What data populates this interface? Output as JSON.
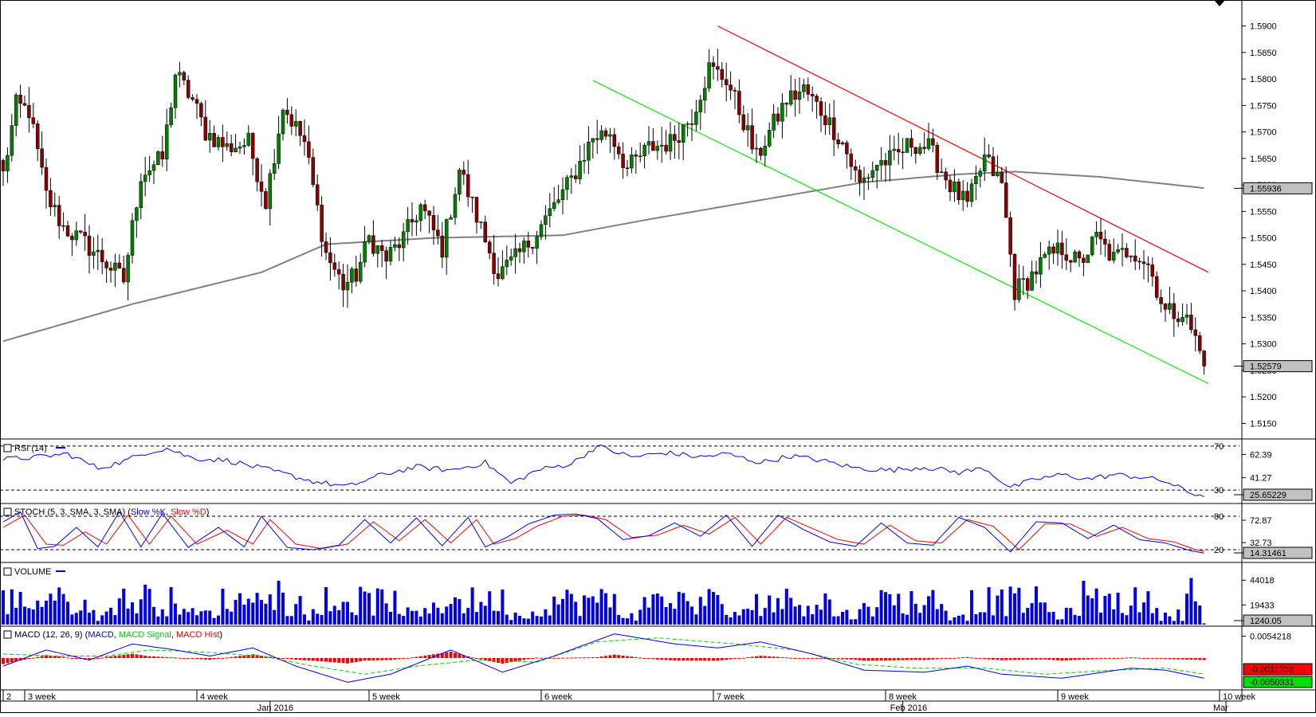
{
  "chart_data": {
    "type": "candlestick",
    "colors": {
      "up": "#008000",
      "down": "#8b0000",
      "sma": "#808080",
      "upper_channel": "#ff0000",
      "lower_channel": "#00ee00",
      "rsi": "#0000ff",
      "stoch_k": "#0000ff",
      "stoch_d": "#ff0000",
      "volume": "#0000ee",
      "macd": "#0000ff",
      "macd_signal": "#00cc00",
      "macd_hist": "#ff0000",
      "price_label_bg": "#c0c0c0"
    },
    "price": {
      "ylim": [
        1.5125,
        1.594
      ],
      "ticks": [
        "1.5900",
        "1.5850",
        "1.5800",
        "1.5750",
        "1.5700",
        "1.5650",
        "1.5600",
        "1.5550",
        "1.5500",
        "1.5450",
        "1.5400",
        "1.5350",
        "1.5300",
        "1.5250",
        "1.5200",
        "1.5150"
      ],
      "current_label": "1.52579",
      "current_value": 1.52579,
      "sma_label": "1.55936",
      "sma_value": 1.55936,
      "candles_count": 280,
      "anchors": [
        [
          0,
          1.562
        ],
        [
          3,
          1.575
        ],
        [
          6,
          1.574
        ],
        [
          10,
          1.558
        ],
        [
          14,
          1.552
        ],
        [
          19,
          1.549
        ],
        [
          23,
          1.546
        ],
        [
          28,
          1.542
        ],
        [
          32,
          1.562
        ],
        [
          37,
          1.565
        ],
        [
          40,
          1.581
        ],
        [
          44,
          1.576
        ],
        [
          47,
          1.57
        ],
        [
          52,
          1.567
        ],
        [
          57,
          1.568
        ],
        [
          61,
          1.557
        ],
        [
          65,
          1.575
        ],
        [
          70,
          1.568
        ],
        [
          75,
          1.547
        ],
        [
          79,
          1.541
        ],
        [
          82,
          1.543
        ],
        [
          85,
          1.55
        ],
        [
          89,
          1.546
        ],
        [
          93,
          1.55
        ],
        [
          97,
          1.556
        ],
        [
          102,
          1.548
        ],
        [
          106,
          1.563
        ],
        [
          110,
          1.554
        ],
        [
          115,
          1.543
        ],
        [
          119,
          1.546
        ],
        [
          123,
          1.55
        ],
        [
          128,
          1.556
        ],
        [
          132,
          1.561
        ],
        [
          137,
          1.569
        ],
        [
          141,
          1.57
        ],
        [
          145,
          1.563
        ],
        [
          150,
          1.567
        ],
        [
          155,
          1.568
        ],
        [
          160,
          1.573
        ],
        [
          164,
          1.582
        ],
        [
          168,
          1.58
        ],
        [
          172,
          1.572
        ],
        [
          175,
          1.565
        ],
        [
          178,
          1.57
        ],
        [
          182,
          1.576
        ],
        [
          186,
          1.578
        ],
        [
          190,
          1.574
        ],
        [
          195,
          1.568
        ],
        [
          199,
          1.56
        ],
        [
          203,
          1.564
        ],
        [
          207,
          1.565
        ],
        [
          211,
          1.568
        ],
        [
          215,
          1.567
        ],
        [
          220,
          1.56
        ],
        [
          224,
          1.556
        ],
        [
          228,
          1.565
        ],
        [
          232,
          1.56
        ],
        [
          235,
          1.54
        ],
        [
          238,
          1.542
        ],
        [
          242,
          1.546
        ],
        [
          246,
          1.548
        ],
        [
          250,
          1.545
        ],
        [
          254,
          1.55
        ],
        [
          258,
          1.546
        ],
        [
          262,
          1.548
        ],
        [
          266,
          1.545
        ],
        [
          270,
          1.536
        ],
        [
          274,
          1.536
        ],
        [
          277,
          1.531
        ],
        [
          279,
          1.5258
        ]
      ]
    },
    "sma": [
      [
        0,
        1.5305
      ],
      [
        30,
        1.5375
      ],
      [
        60,
        1.5435
      ],
      [
        75,
        1.5488
      ],
      [
        100,
        1.55
      ],
      [
        130,
        1.5505
      ],
      [
        150,
        1.5535
      ],
      [
        175,
        1.557
      ],
      [
        200,
        1.5605
      ],
      [
        222,
        1.562
      ],
      [
        235,
        1.5625
      ],
      [
        255,
        1.5615
      ],
      [
        279,
        1.5594
      ]
    ],
    "upper_channel": {
      "from": [
        166,
        1.59
      ],
      "to": [
        280,
        1.5435
      ]
    },
    "lower_channel": {
      "from": [
        137,
        1.5797
      ],
      "to": [
        280,
        1.5225
      ]
    },
    "rsi": {
      "title": "RSI (14)",
      "ylim": [
        20,
        75
      ],
      "levels": [
        "70",
        "30"
      ],
      "ticks": [
        "62.39",
        "41.27"
      ],
      "current_label": "25.65229",
      "anchors": [
        [
          0,
          58
        ],
        [
          8,
          60
        ],
        [
          15,
          63
        ],
        [
          22,
          50
        ],
        [
          28,
          56
        ],
        [
          33,
          64
        ],
        [
          38,
          68
        ],
        [
          44,
          59
        ],
        [
          52,
          57
        ],
        [
          62,
          48
        ],
        [
          72,
          38
        ],
        [
          80,
          33
        ],
        [
          88,
          44
        ],
        [
          96,
          51
        ],
        [
          104,
          48
        ],
        [
          112,
          55
        ],
        [
          118,
          36
        ],
        [
          124,
          48
        ],
        [
          132,
          54
        ],
        [
          138,
          70
        ],
        [
          146,
          60
        ],
        [
          154,
          64
        ],
        [
          162,
          60
        ],
        [
          168,
          63
        ],
        [
          176,
          55
        ],
        [
          183,
          61
        ],
        [
          190,
          57
        ],
        [
          198,
          50
        ],
        [
          206,
          48
        ],
        [
          214,
          51
        ],
        [
          222,
          46
        ],
        [
          228,
          50
        ],
        [
          234,
          32
        ],
        [
          240,
          40
        ],
        [
          246,
          44
        ],
        [
          252,
          40
        ],
        [
          258,
          44
        ],
        [
          264,
          42
        ],
        [
          270,
          38
        ],
        [
          276,
          27
        ],
        [
          279,
          25.6
        ]
      ]
    },
    "stoch": {
      "title": "STOCH (5, 3, SMA, 3, SMA)",
      "ylim": [
        0,
        100
      ],
      "levels": [
        "80",
        "20"
      ],
      "ticks": [
        "72.87",
        "32.73"
      ],
      "current_label": "14.31461",
      "k_anchors": [
        [
          0,
          70
        ],
        [
          4,
          88
        ],
        [
          8,
          22
        ],
        [
          12,
          26
        ],
        [
          17,
          60
        ],
        [
          22,
          25
        ],
        [
          27,
          88
        ],
        [
          32,
          25
        ],
        [
          37,
          85
        ],
        [
          43,
          24
        ],
        [
          50,
          60
        ],
        [
          56,
          25
        ],
        [
          60,
          80
        ],
        [
          66,
          24
        ],
        [
          72,
          20
        ],
        [
          78,
          28
        ],
        [
          84,
          74
        ],
        [
          90,
          32
        ],
        [
          96,
          77
        ],
        [
          102,
          27
        ],
        [
          108,
          78
        ],
        [
          112,
          25
        ],
        [
          117,
          42
        ],
        [
          122,
          66
        ],
        [
          128,
          82
        ],
        [
          133,
          84
        ],
        [
          138,
          76
        ],
        [
          144,
          38
        ],
        [
          150,
          45
        ],
        [
          156,
          68
        ],
        [
          162,
          44
        ],
        [
          168,
          82
        ],
        [
          174,
          26
        ],
        [
          180,
          82
        ],
        [
          186,
          56
        ],
        [
          192,
          34
        ],
        [
          198,
          26
        ],
        [
          204,
          68
        ],
        [
          210,
          32
        ],
        [
          216,
          28
        ],
        [
          222,
          78
        ],
        [
          228,
          60
        ],
        [
          234,
          16
        ],
        [
          240,
          70
        ],
        [
          246,
          68
        ],
        [
          252,
          40
        ],
        [
          258,
          64
        ],
        [
          264,
          38
        ],
        [
          270,
          32
        ],
        [
          276,
          18
        ],
        [
          279,
          14
        ]
      ],
      "d_anchors": [
        [
          0,
          60
        ],
        [
          5,
          82
        ],
        [
          10,
          30
        ],
        [
          14,
          28
        ],
        [
          19,
          52
        ],
        [
          24,
          30
        ],
        [
          29,
          82
        ],
        [
          34,
          30
        ],
        [
          39,
          80
        ],
        [
          45,
          30
        ],
        [
          52,
          55
        ],
        [
          58,
          30
        ],
        [
          62,
          74
        ],
        [
          68,
          30
        ],
        [
          74,
          22
        ],
        [
          80,
          30
        ],
        [
          86,
          70
        ],
        [
          92,
          36
        ],
        [
          98,
          74
        ],
        [
          104,
          32
        ],
        [
          110,
          74
        ],
        [
          114,
          30
        ],
        [
          119,
          40
        ],
        [
          124,
          62
        ],
        [
          130,
          80
        ],
        [
          135,
          82
        ],
        [
          140,
          74
        ],
        [
          146,
          42
        ],
        [
          152,
          46
        ],
        [
          158,
          64
        ],
        [
          164,
          48
        ],
        [
          170,
          78
        ],
        [
          176,
          30
        ],
        [
          182,
          78
        ],
        [
          188,
          58
        ],
        [
          194,
          38
        ],
        [
          200,
          30
        ],
        [
          206,
          64
        ],
        [
          212,
          36
        ],
        [
          218,
          32
        ],
        [
          224,
          74
        ],
        [
          230,
          62
        ],
        [
          236,
          20
        ],
        [
          242,
          66
        ],
        [
          248,
          66
        ],
        [
          254,
          44
        ],
        [
          260,
          60
        ],
        [
          266,
          40
        ],
        [
          272,
          34
        ],
        [
          277,
          20
        ],
        [
          279,
          17
        ]
      ]
    },
    "volume": {
      "title": "VOLUME",
      "ymax": 60000,
      "ticks": [
        "44018",
        "19433"
      ],
      "current_label": "1240.05",
      "current_value": 1240.05
    },
    "macd": {
      "title": "MACD (12, 26, 9)",
      "series_names": [
        "MACD",
        "MACD Signal",
        "MACD Hist"
      ],
      "ylim": [
        -0.0075,
        0.0075
      ],
      "ticks": [
        "0.0054218"
      ],
      "macd_label": "-0.0050331",
      "hist_label": "-0.0011703",
      "macd_anchors": [
        [
          0,
          -0.002
        ],
        [
          10,
          0.002
        ],
        [
          20,
          -0.0005
        ],
        [
          30,
          0.0035
        ],
        [
          40,
          0.002
        ],
        [
          48,
          0.0005
        ],
        [
          58,
          0.0025
        ],
        [
          68,
          -0.002
        ],
        [
          80,
          -0.006
        ],
        [
          90,
          -0.004
        ],
        [
          104,
          0.002
        ],
        [
          116,
          -0.0035
        ],
        [
          128,
          0.0005
        ],
        [
          142,
          0.006
        ],
        [
          156,
          0.0035
        ],
        [
          166,
          0.0025
        ],
        [
          176,
          0.004
        ],
        [
          188,
          0.001
        ],
        [
          200,
          -0.003
        ],
        [
          214,
          -0.0035
        ],
        [
          224,
          -0.002
        ],
        [
          232,
          -0.004
        ],
        [
          246,
          -0.005
        ],
        [
          262,
          -0.0025
        ],
        [
          270,
          -0.003
        ],
        [
          279,
          -0.005
        ]
      ],
      "signal_anchors": [
        [
          0,
          0.001
        ],
        [
          12,
          0.0005
        ],
        [
          24,
          0.0005
        ],
        [
          34,
          0.002
        ],
        [
          46,
          0.0015
        ],
        [
          60,
          0.0005
        ],
        [
          72,
          -0.002
        ],
        [
          84,
          -0.004
        ],
        [
          96,
          -0.002
        ],
        [
          110,
          -0.0005
        ],
        [
          124,
          -0.001
        ],
        [
          138,
          0.004
        ],
        [
          152,
          0.005
        ],
        [
          170,
          0.0035
        ],
        [
          184,
          0.002
        ],
        [
          198,
          -0.0015
        ],
        [
          212,
          -0.0025
        ],
        [
          228,
          -0.0025
        ],
        [
          242,
          -0.004
        ],
        [
          258,
          -0.003
        ],
        [
          270,
          -0.0025
        ],
        [
          279,
          -0.004
        ]
      ]
    },
    "x_axis": {
      "week_labels": [
        {
          "text": "2",
          "i": 0
        },
        {
          "text": "3 week",
          "i": 5
        },
        {
          "text": "4 week",
          "i": 45
        },
        {
          "text": "5 week",
          "i": 85
        },
        {
          "text": "6 week",
          "i": 125
        },
        {
          "text": "7 week",
          "i": 165
        },
        {
          "text": "8 week",
          "i": 205
        },
        {
          "text": "9 week",
          "i": 245
        },
        {
          "text": "10 week",
          "i": 285
        }
      ],
      "month_labels": [
        {
          "text": "Jan 2016",
          "i": 62
        },
        {
          "text": "Feb 2016",
          "i": 209
        },
        {
          "text": "Mar",
          "i": 294
        }
      ]
    }
  }
}
